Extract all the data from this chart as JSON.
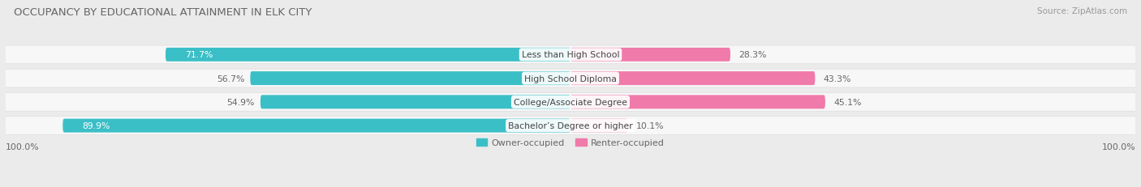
{
  "title": "OCCUPANCY BY EDUCATIONAL ATTAINMENT IN ELK CITY",
  "source": "Source: ZipAtlas.com",
  "categories": [
    "Less than High School",
    "High School Diploma",
    "College/Associate Degree",
    "Bachelor’s Degree or higher"
  ],
  "owner_values": [
    71.7,
    56.7,
    54.9,
    89.9
  ],
  "renter_values": [
    28.3,
    43.3,
    45.1,
    10.1
  ],
  "owner_color": "#3bbfc7",
  "renter_color": "#f07aaa",
  "renter_color_light": "#f5aec8",
  "background_color": "#ebebeb",
  "row_bg_color": "#f7f7f7",
  "title_color": "#666666",
  "source_color": "#999999",
  "label_color": "#444444",
  "value_color_white": "#ffffff",
  "value_color_dark": "#666666",
  "title_fontsize": 9.5,
  "source_fontsize": 7.5,
  "cat_fontsize": 7.8,
  "value_fontsize": 7.8,
  "legend_fontsize": 8,
  "axis_label": "100.0%",
  "figsize": [
    14.06,
    2.32
  ],
  "dpi": 100
}
